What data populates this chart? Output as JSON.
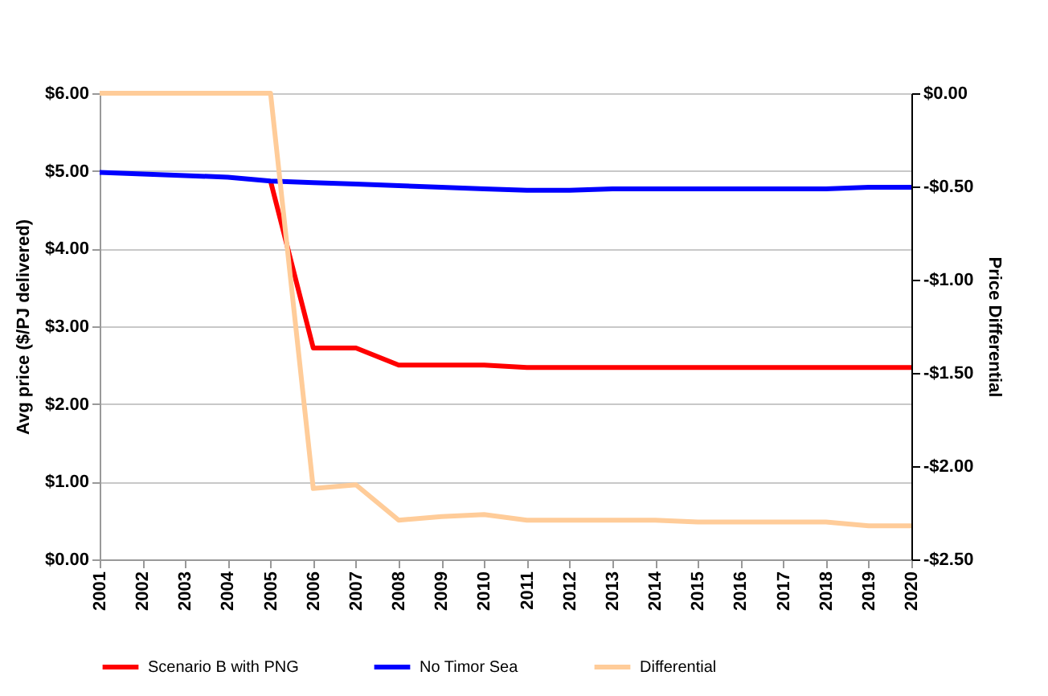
{
  "chart_data": {
    "type": "line",
    "ylabel": "Avg price ($/PJ delivered)",
    "y2label": "Price Differential",
    "categories": [
      "2001",
      "2002",
      "2003",
      "2004",
      "2005",
      "2006",
      "2007",
      "2008",
      "2009",
      "2010",
      "2011",
      "2012",
      "2013",
      "2014",
      "2015",
      "2016",
      "2017",
      "2018",
      "2019",
      "2020"
    ],
    "series": [
      {
        "name": "Scenario B with PNG",
        "color": "#ff0000",
        "values": [
          null,
          null,
          null,
          null,
          4.87,
          2.72,
          2.72,
          2.5,
          2.5,
          2.5,
          2.47,
          2.47,
          2.47,
          2.47,
          2.47,
          2.47,
          2.47,
          2.47,
          2.47,
          2.47
        ]
      },
      {
        "name": "No Timor Sea",
        "color": "#0000ff",
        "values": [
          4.98,
          4.96,
          4.94,
          4.92,
          4.87,
          4.85,
          4.83,
          4.81,
          4.79,
          4.77,
          4.75,
          4.75,
          4.77,
          4.77,
          4.77,
          4.77,
          4.77,
          4.77,
          4.79,
          4.79
        ]
      },
      {
        "name": "Differential",
        "color": "#ffcc99",
        "axis": "y2",
        "values": [
          0,
          0,
          0,
          0,
          0,
          -2.12,
          -2.1,
          -2.29,
          -2.27,
          -2.26,
          -2.29,
          -2.29,
          -2.29,
          -2.29,
          -2.3,
          -2.3,
          -2.3,
          -2.3,
          -2.32,
          -2.32
        ]
      }
    ],
    "ylim": [
      0,
      6
    ],
    "yticks": [
      {
        "value": 0,
        "label": "$0.00"
      },
      {
        "value": 1,
        "label": "$1.00"
      },
      {
        "value": 2,
        "label": "$2.00"
      },
      {
        "value": 3,
        "label": "$3.00"
      },
      {
        "value": 4,
        "label": "$4.00"
      },
      {
        "value": 5,
        "label": "$5.00"
      },
      {
        "value": 6,
        "label": "$6.00"
      }
    ],
    "y2lim": [
      -2.5,
      0
    ],
    "y2ticks": [
      {
        "value": -2.5,
        "label": "-$2.50"
      },
      {
        "value": -2,
        "label": "-$2.00"
      },
      {
        "value": -1.5,
        "label": "-$1.50"
      },
      {
        "value": -1,
        "label": "-$1.00"
      },
      {
        "value": -0.5,
        "label": "-$0.50"
      },
      {
        "value": 0,
        "label": "$0.00"
      }
    ],
    "grid": "y",
    "legend": "bottom",
    "marker": "none",
    "line_style": "solid"
  }
}
